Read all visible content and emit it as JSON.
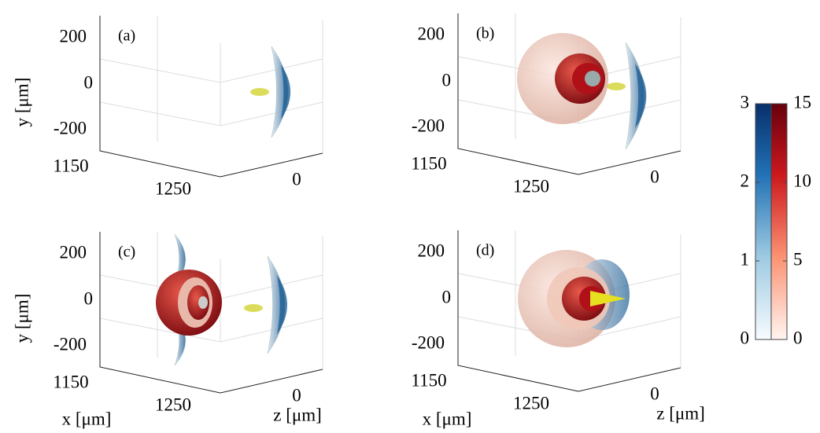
{
  "axis_labels": {
    "y": "y [μm]",
    "x": "x [μm]",
    "z": "z [μm]"
  },
  "panels": [
    {
      "label": "(a)",
      "yticks": [
        200,
        0,
        -200
      ],
      "xticks": [
        1150,
        1250
      ],
      "zticks": [
        0
      ]
    },
    {
      "label": "(b)",
      "yticks": [
        200,
        0,
        -200
      ],
      "xticks": [
        1150,
        1250
      ],
      "zticks": [
        0
      ]
    },
    {
      "label": "(c)",
      "yticks": [
        200,
        0,
        -200
      ],
      "xticks": [
        1150,
        1250
      ],
      "zticks": [
        0
      ]
    },
    {
      "label": "(d)",
      "yticks": [
        200,
        0,
        -200
      ],
      "xticks": [
        1150,
        1250
      ],
      "zticks": [
        0
      ]
    }
  ],
  "colorbars": [
    {
      "ticks": [
        0,
        1,
        2,
        3
      ],
      "color": "#08306b"
    },
    {
      "ticks": [
        0,
        5,
        10,
        15
      ],
      "color": "#67000d"
    }
  ]
}
